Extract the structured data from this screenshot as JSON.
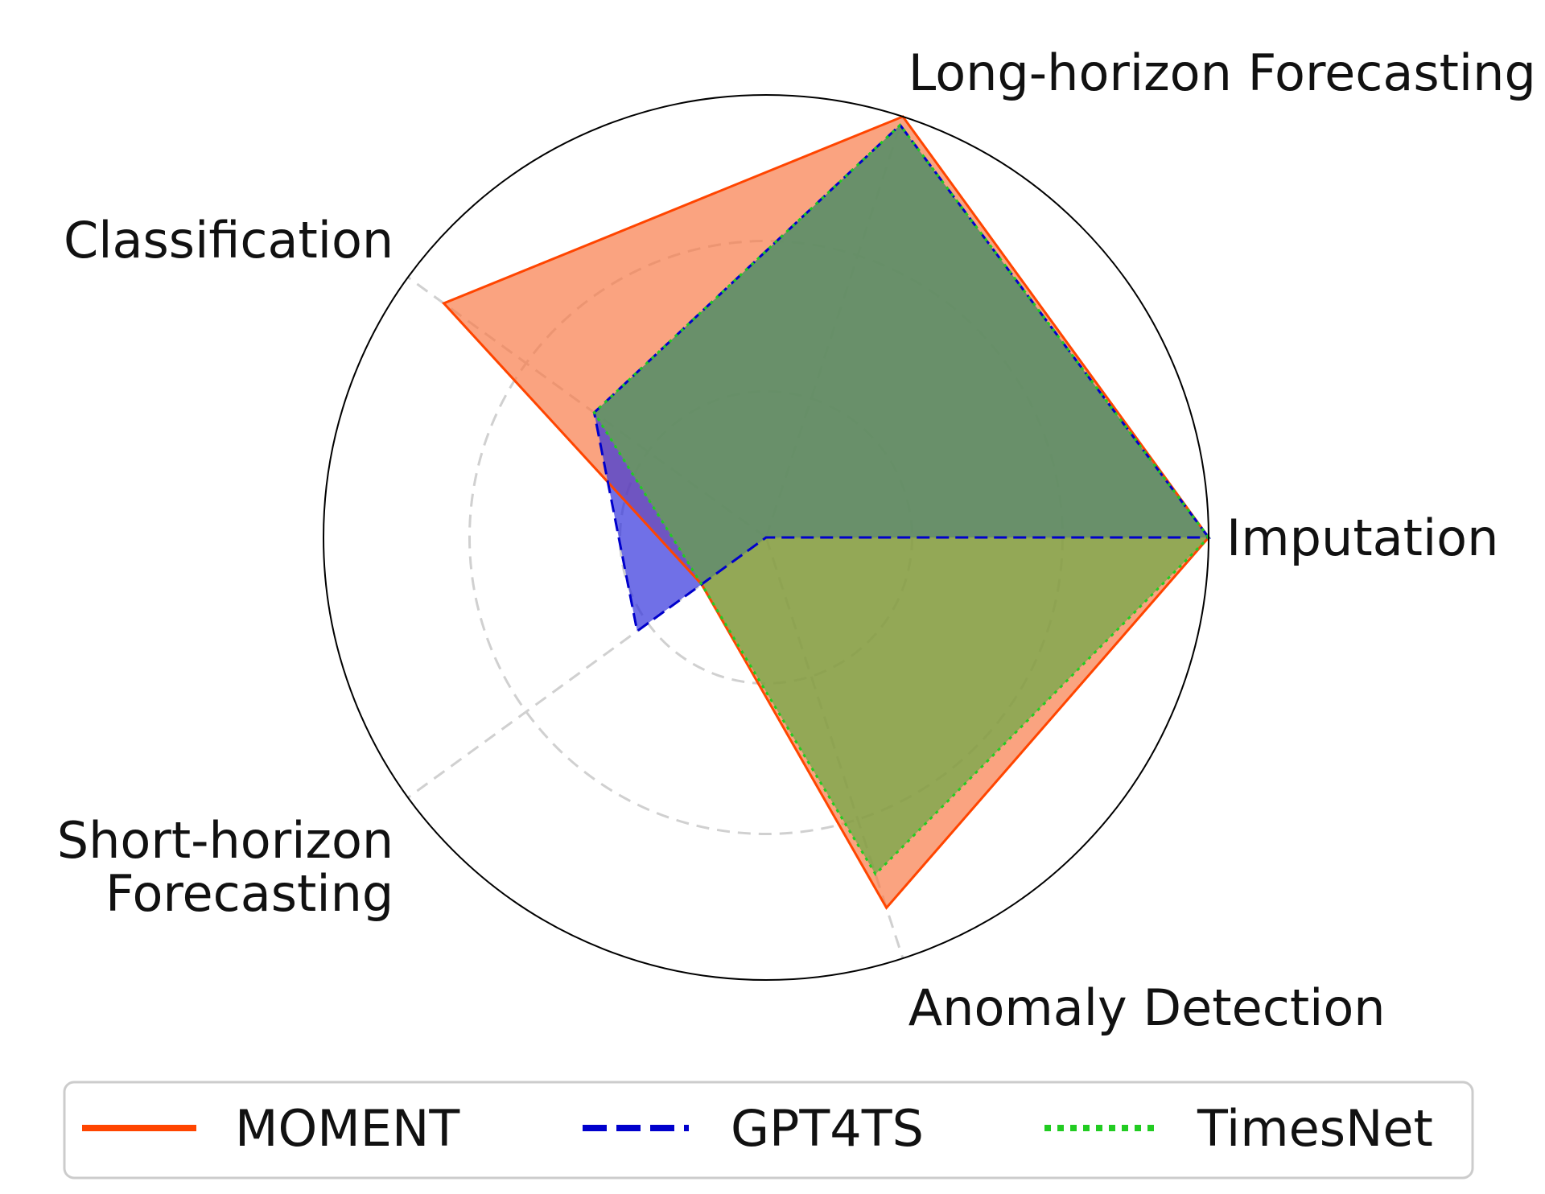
{
  "chart_data": {
    "type": "radar",
    "axes": [
      "Imputation",
      "Long-horizon Forecasting",
      "Classification",
      "Short-horizon Forecasting",
      "Anomaly Detection"
    ],
    "axis_label_lines": [
      [
        "Imputation"
      ],
      [
        "Long-horizon Forecasting"
      ],
      [
        "Classification"
      ],
      [
        "Short-horizon",
        "Forecasting"
      ],
      [
        "Anomaly Detection"
      ]
    ],
    "rlim": [
      0,
      1
    ],
    "rings": [
      0.33,
      0.67,
      1.0
    ],
    "grid": true,
    "legend_position": "bottom",
    "series": [
      {
        "name": "MOMENT",
        "values": [
          1.0,
          1.0,
          0.9,
          0.18,
          0.88
        ],
        "color": "#ff4500",
        "fill": "#f87c4a",
        "line_style": "solid"
      },
      {
        "name": "GPT4TS",
        "values": [
          1.0,
          0.98,
          0.48,
          0.36,
          0.0
        ],
        "color": "#0000cc",
        "fill": "#3333dd",
        "line_style": "dashed"
      },
      {
        "name": "TimesNet",
        "values": [
          1.0,
          0.98,
          0.48,
          0.18,
          0.8
        ],
        "color": "#22cc22",
        "fill": "#66aa44",
        "line_style": "dotted"
      }
    ]
  }
}
